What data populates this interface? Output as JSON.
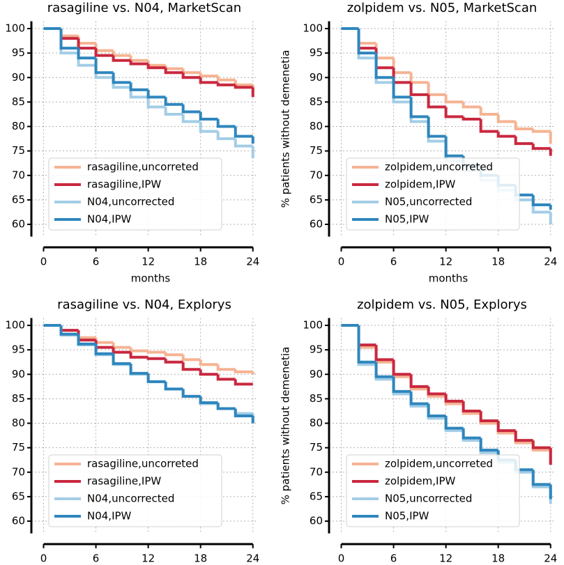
{
  "chart_data": [
    {
      "type": "step",
      "title": "rasagiline vs. N04, MarketScan",
      "xlabel": "months",
      "x": [
        0,
        2,
        4,
        6,
        8,
        10,
        12,
        14,
        16,
        18,
        20,
        22,
        24
      ],
      "series": [
        {
          "name": "rasagiline,uncorreted",
          "color": "#f5b393",
          "values": [
            100,
            98.5,
            97,
            95.5,
            94.5,
            93.5,
            92.5,
            91.8,
            91,
            90.3,
            89.5,
            88.5,
            87
          ]
        },
        {
          "name": "rasagiline,IPW",
          "color": "#c9283f",
          "values": [
            100,
            98,
            96,
            94.5,
            93.5,
            92.8,
            92,
            91,
            90,
            89,
            88.5,
            88,
            86
          ]
        },
        {
          "name": "N04,uncorrected",
          "color": "#a3cde6",
          "values": [
            100,
            95,
            92.5,
            90,
            88,
            86,
            84,
            82.5,
            81,
            79,
            77.5,
            76,
            73.5
          ]
        },
        {
          "name": "N04,IPW",
          "color": "#2f86bd",
          "values": [
            100,
            96,
            94,
            91,
            89,
            87.5,
            86,
            84.5,
            83,
            81.5,
            80,
            78,
            76.5
          ]
        }
      ],
      "xlim": [
        -1.4,
        24.5
      ],
      "ylim": [
        57.5,
        101.5
      ],
      "xticks": [
        0,
        6,
        12,
        18,
        24
      ],
      "yticks": [
        60,
        65,
        70,
        75,
        80,
        85,
        90,
        95,
        100
      ],
      "grid": true,
      "legend": "lower left"
    },
    {
      "type": "step",
      "title": "zolpidem vs. N05, MarketScan",
      "xlabel": "months",
      "ylabel": "% patients without demenetia",
      "x": [
        0,
        2,
        4,
        6,
        8,
        10,
        12,
        14,
        16,
        18,
        20,
        22,
        24
      ],
      "series": [
        {
          "name": "zolpidem,uncorreted",
          "color": "#f5b393",
          "values": [
            100,
            97,
            94,
            91,
            89,
            86.5,
            85,
            84,
            82.5,
            81,
            79.5,
            79,
            76.5
          ]
        },
        {
          "name": "zolpidem,IPW",
          "color": "#c9283f",
          "values": [
            100,
            96,
            92,
            89,
            86.5,
            84,
            82,
            81.5,
            79,
            78,
            76.5,
            75.5,
            74
          ]
        },
        {
          "name": "N05,uncorrected",
          "color": "#a3cde6",
          "values": [
            100,
            94,
            89,
            85,
            81,
            77,
            73,
            71,
            69,
            67,
            65,
            62.5,
            60
          ]
        },
        {
          "name": "N05,IPW",
          "color": "#2f86bd",
          "values": [
            100,
            95,
            90,
            86,
            82,
            78,
            74,
            72,
            70,
            68,
            66,
            64,
            63
          ]
        }
      ],
      "xlim": [
        -1.4,
        24.5
      ],
      "ylim": [
        57.5,
        101.5
      ],
      "xticks": [
        0,
        6,
        12,
        18,
        24
      ],
      "yticks": [
        60,
        65,
        70,
        75,
        80,
        85,
        90,
        95,
        100
      ],
      "grid": true,
      "legend": "lower left"
    },
    {
      "type": "step",
      "title": "rasagiline vs. N04, Explorys",
      "x": [
        0,
        2,
        4,
        6,
        8,
        10,
        12,
        14,
        16,
        18,
        20,
        22,
        24
      ],
      "series": [
        {
          "name": "rasagiline,uncorreted",
          "color": "#f5b393",
          "values": [
            100,
            99,
            97.5,
            96.5,
            95.5,
            94.8,
            94.5,
            94,
            93,
            92,
            91,
            90.5,
            90
          ]
        },
        {
          "name": "rasagiline,IPW",
          "color": "#c9283f",
          "values": [
            100,
            99,
            97,
            95.5,
            94.5,
            93.5,
            93.2,
            92.5,
            91,
            90,
            89,
            88,
            88
          ]
        },
        {
          "name": "N04,uncorrected",
          "color": "#a3cde6",
          "values": [
            100,
            98,
            96,
            94,
            92,
            90,
            88.5,
            87,
            85.5,
            84,
            83,
            82,
            80
          ]
        },
        {
          "name": "N04,IPW",
          "color": "#2f86bd",
          "values": [
            100,
            98.2,
            96.2,
            94.2,
            92.2,
            90.2,
            88.5,
            87,
            85.5,
            84.2,
            83,
            81.5,
            80
          ]
        }
      ],
      "xlim": [
        -1.4,
        24.5
      ],
      "ylim": [
        57.5,
        101.5
      ],
      "xticks": [
        0,
        6,
        12,
        18,
        24
      ],
      "yticks": [
        60,
        65,
        70,
        75,
        80,
        85,
        90,
        95,
        100
      ],
      "grid": true,
      "legend": "lower left"
    },
    {
      "type": "step",
      "title": "zolpidem vs. N05, Explorys",
      "ylabel": "% patients without demenetia",
      "x": [
        0,
        2,
        4,
        6,
        8,
        10,
        12,
        14,
        16,
        18,
        20,
        22,
        24
      ],
      "series": [
        {
          "name": "zolpidem,uncorreted",
          "color": "#f5b393",
          "values": [
            100,
            95.5,
            92.5,
            89.5,
            87,
            85.5,
            84,
            82,
            80,
            78,
            76,
            74.5,
            72
          ]
        },
        {
          "name": "zolpidem,IPW",
          "color": "#c9283f",
          "values": [
            100,
            96,
            93,
            90,
            87.5,
            86,
            84.5,
            82.5,
            80.5,
            78.5,
            76.5,
            75,
            71.5
          ]
        },
        {
          "name": "N05,uncorrected",
          "color": "#a3cde6",
          "values": [
            100,
            92,
            89,
            86,
            83.5,
            81,
            78.5,
            76.5,
            74,
            72,
            70,
            67,
            63.5
          ]
        },
        {
          "name": "N05,IPW",
          "color": "#2f86bd",
          "values": [
            100,
            92.5,
            89.5,
            86.5,
            84,
            81.5,
            79,
            77,
            74.5,
            72.5,
            70.5,
            67.5,
            64.5
          ]
        }
      ],
      "xlim": [
        -1.4,
        24.5
      ],
      "ylim": [
        57.5,
        101.5
      ],
      "xticks": [
        0,
        6,
        12,
        18,
        24
      ],
      "yticks": [
        60,
        65,
        70,
        75,
        80,
        85,
        90,
        95,
        100
      ],
      "grid": true,
      "legend": "lower left"
    }
  ]
}
